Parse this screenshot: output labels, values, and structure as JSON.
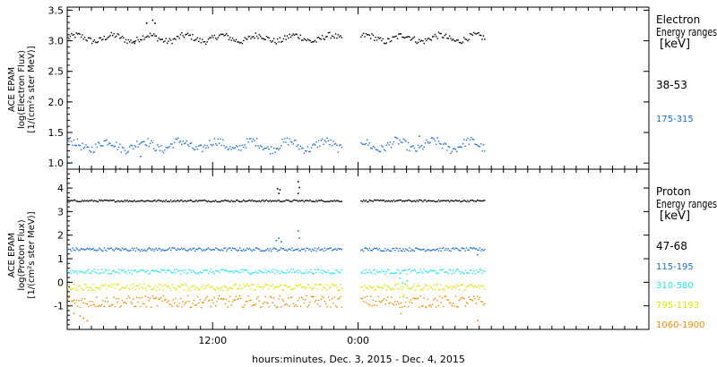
{
  "chart_data": [
    {
      "type": "scatter",
      "ylabel_lines": [
        "ACE EPAM",
        "log(Electron Flux)",
        "[1/(cm²s ster MeV)]"
      ],
      "ylim": [
        0.9,
        3.55
      ],
      "yticks": [
        "1.0",
        "1.5",
        "2.0",
        "2.5",
        "3.0",
        "3.5"
      ],
      "yticks_values": [
        1.0,
        1.5,
        2.0,
        2.5,
        3.0,
        3.5
      ],
      "legend": {
        "title_lines": [
          "Electron",
          "Energy ranges",
          "[keV]"
        ],
        "placement": "right"
      },
      "series": [
        {
          "name": "38-53",
          "color": "#000000",
          "base": 3.05,
          "spread": 0.05,
          "noise": 0.05,
          "extra": [
            [
              6.5,
              3.3
            ],
            [
              7.0,
              3.35
            ],
            [
              7.2,
              3.3
            ],
            [
              5.5,
              2.97
            ]
          ]
        },
        {
          "name": "175-315",
          "color": "#1e6fcf",
          "base": 1.3,
          "spread": 0.07,
          "noise": 0.07,
          "extra": [
            [
              0.3,
              1.02
            ],
            [
              4.3,
              0.92
            ],
            [
              6.0,
              1.12
            ],
            [
              29.0,
              1.45
            ]
          ]
        }
      ]
    },
    {
      "type": "scatter",
      "ylabel_lines": [
        "ACE EPAM",
        "log(Proton Flux)",
        "[1/(cm²s ster MeV)]"
      ],
      "ylim": [
        -2.0,
        4.8
      ],
      "yticks": [
        "-1",
        "0",
        "1",
        "2",
        "3",
        "4"
      ],
      "yticks_values": [
        -1,
        0,
        1,
        2,
        3,
        4
      ],
      "legend": {
        "title_lines": [
          "Proton",
          "Energy ranges",
          "[keV]"
        ],
        "placement": "right"
      },
      "series": [
        {
          "name": "47-68",
          "color": "#000000",
          "base": 3.48,
          "spread": 0.0,
          "noise": 0.04,
          "extra": [
            [
              17.3,
              4.0
            ],
            [
              17.5,
              3.95
            ],
            [
              19.0,
              4.3
            ],
            [
              19.1,
              4.05
            ],
            [
              19.0,
              3.8
            ],
            [
              17.4,
              3.8
            ]
          ]
        },
        {
          "name": "115-195",
          "color": "#1e6fcf",
          "base": 1.42,
          "spread": 0.0,
          "noise": 0.07,
          "extra": [
            [
              17.2,
              1.8
            ],
            [
              17.4,
              1.9
            ],
            [
              17.6,
              1.75
            ],
            [
              19.0,
              2.2
            ],
            [
              19.1,
              1.9
            ],
            [
              33.8,
              1.2
            ]
          ]
        },
        {
          "name": "310-580",
          "color": "#2ee6e6",
          "base": 0.48,
          "spread": 0.0,
          "noise": 0.1,
          "extra": [
            [
              27.4,
              0.2
            ],
            [
              27.6,
              0.0
            ],
            [
              28.0,
              0.1
            ]
          ]
        },
        {
          "name": "795-1193",
          "color": "#d8e800",
          "base": -0.18,
          "spread": 0.0,
          "noise": 0.14,
          "extra": [
            [
              27.4,
              -0.6
            ],
            [
              27.7,
              -0.5
            ]
          ]
        },
        {
          "name": "1060-1900",
          "color": "#f08c00",
          "base": -0.8,
          "spread": 0.0,
          "noise": 0.25,
          "extra": [
            [
              1.0,
              -1.4
            ],
            [
              1.3,
              -1.5
            ],
            [
              1.6,
              -1.6
            ],
            [
              0.5,
              -1.3
            ],
            [
              33.8,
              -1.6
            ],
            [
              27.5,
              -1.3
            ]
          ]
        }
      ]
    }
  ],
  "x_axis": {
    "label": "hours:minutes, Dec.  3, 2015 - Dec.  4, 2015",
    "ticks": [
      "12:00",
      "0:00"
    ],
    "ticks_hours": [
      12,
      24
    ],
    "range_hours": [
      0,
      48
    ],
    "data_coverage_hours": [
      0,
      34.5
    ],
    "data_gap_hours": [
      22.7,
      24.2
    ]
  }
}
